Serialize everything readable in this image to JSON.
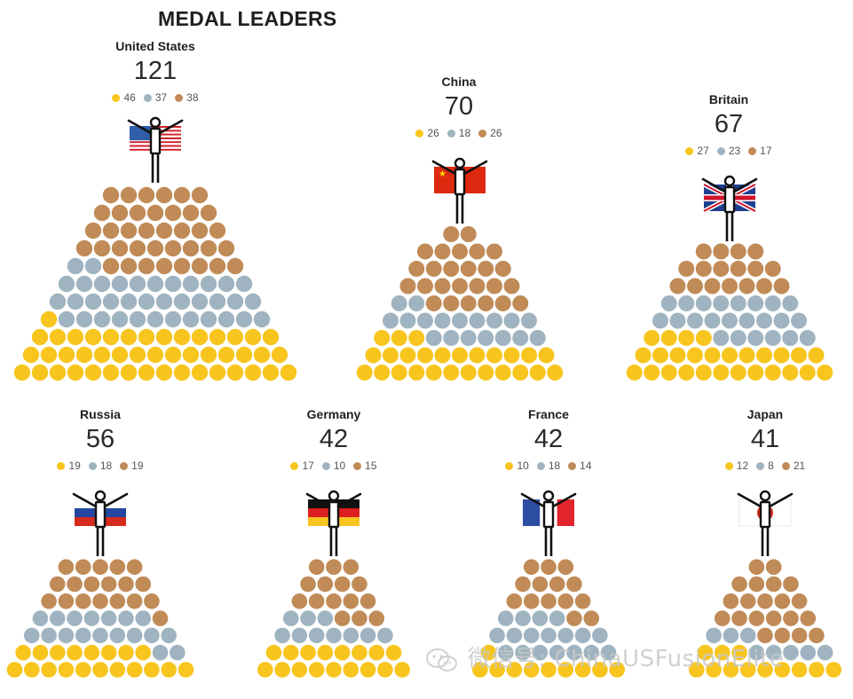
{
  "title": "MEDAL LEADERS",
  "watermark": "微信号: ChinaUSFusionElite",
  "colors": {
    "gold": "#f7c51e",
    "silver": "#9fb4c0",
    "bronze": "#c08b57"
  },
  "chart_data": [
    {
      "type": "pyramid",
      "name": "United States",
      "total": 121,
      "gold": 46,
      "silver": 37,
      "bronze": 38
    },
    {
      "type": "pyramid",
      "name": "China",
      "total": 70,
      "gold": 26,
      "silver": 18,
      "bronze": 26
    },
    {
      "type": "pyramid",
      "name": "Britain",
      "total": 67,
      "gold": 27,
      "silver": 23,
      "bronze": 17
    },
    {
      "type": "pyramid",
      "name": "Russia",
      "total": 56,
      "gold": 19,
      "silver": 18,
      "bronze": 19
    },
    {
      "type": "pyramid",
      "name": "Germany",
      "total": 42,
      "gold": 17,
      "silver": 10,
      "bronze": 15
    },
    {
      "type": "pyramid",
      "name": "France",
      "total": 42,
      "gold": 10,
      "silver": 18,
      "bronze": 14
    },
    {
      "type": "pyramid",
      "name": "Japan",
      "total": 41,
      "gold": 12,
      "silver": 8,
      "bronze": 21
    }
  ]
}
